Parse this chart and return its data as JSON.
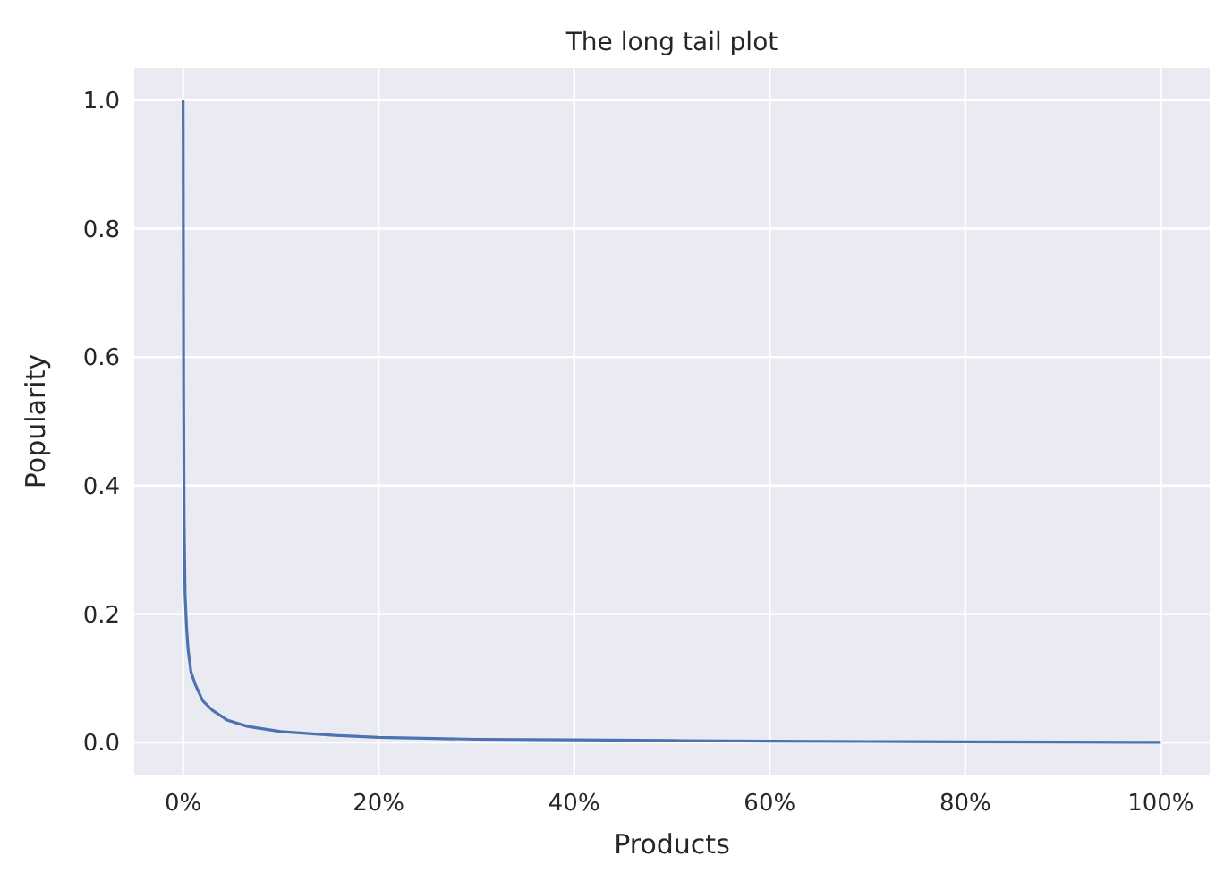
{
  "chart_data": {
    "type": "line",
    "title": "The long tail plot",
    "xlabel": "Products",
    "ylabel": "Popularity",
    "x": [
      0,
      0.05,
      0.1,
      0.2,
      0.35,
      0.5,
      0.8,
      1.25,
      2,
      3,
      4.5,
      6.6,
      10,
      15.5,
      20,
      30,
      40,
      50,
      60,
      70,
      80,
      90,
      100
    ],
    "series": [
      {
        "color": "#4c72b0",
        "values": [
          1,
          0.55,
          0.35,
          0.23,
          0.18,
          0.146,
          0.11,
          0.09,
          0.065,
          0.05,
          0.035,
          0.025,
          0.017,
          0.011,
          0.008,
          0.005,
          0.004,
          0.003,
          0.002,
          0.0015,
          0.001,
          0.0007,
          0.0003
        ]
      }
    ],
    "xlim": [
      -5,
      105
    ],
    "xticks": [
      {
        "value": 0,
        "label": "0%"
      },
      {
        "value": 20,
        "label": "20%"
      },
      {
        "value": 40,
        "label": "40%"
      },
      {
        "value": 60,
        "label": "60%"
      },
      {
        "value": 80,
        "label": "80%"
      },
      {
        "value": 100,
        "label": "100%"
      }
    ],
    "ylim": [
      -0.05,
      1.05
    ],
    "yticks": [
      {
        "value": 0,
        "label": "0.0"
      },
      {
        "value": 0.2,
        "label": "0.2"
      },
      {
        "value": 0.4,
        "label": "0.4"
      },
      {
        "value": 0.6,
        "label": "0.6"
      },
      {
        "value": 0.8,
        "label": "0.8"
      },
      {
        "value": 1,
        "label": "1.0"
      }
    ],
    "grid": true,
    "line_style": "solid",
    "marker": "none"
  }
}
